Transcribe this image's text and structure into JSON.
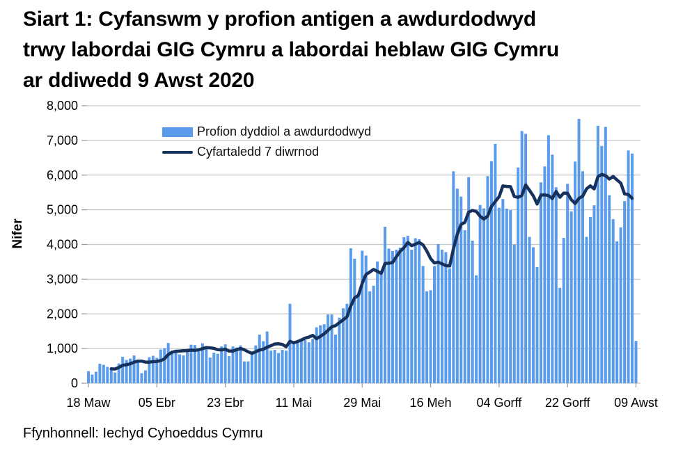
{
  "title_lines": [
    "Siart 1: Cyfanswm y profion antigen a awdurdodwyd",
    "trwy labordai GIG Cymru a labordai heblaw GIG Cymru",
    "ar ddiwedd 9 Awst 2020"
  ],
  "source_note": "Ffynhonnell: Iechyd Cyhoeddus Cymru",
  "legend": {
    "bar_label": "Profion dyddiol a awdurdodwyd",
    "line_label": "Cyfartaledd 7 diwrnod"
  },
  "colors": {
    "bar": "#5A9BEB",
    "line": "#16325C",
    "grid": "#C6C6C6",
    "tick": "#9E9E9E",
    "axis_text": "#000000"
  },
  "chart_data": {
    "type": "bar",
    "title": "Siart 1: Cyfanswm y profion antigen a awdurdodwyd trwy labordai GIG Cymru a labordai heblaw GIG Cymru ar ddiwedd 9 Awst 2020",
    "xlabel": "",
    "ylabel": "Nifer",
    "ylim": [
      0,
      8000
    ],
    "ytick_step": 1000,
    "grid": true,
    "legend_position": "top-left-inside",
    "x_start_date": "18 Mawrth 2020",
    "x_end_date": "9 Awst 2020",
    "x_ticks": [
      {
        "day": 1,
        "label": "18 Maw"
      },
      {
        "day": 19,
        "label": "05 Ebr"
      },
      {
        "day": 37,
        "label": "23 Ebr"
      },
      {
        "day": 55,
        "label": "11 Mai"
      },
      {
        "day": 73,
        "label": "29 Mai"
      },
      {
        "day": 91,
        "label": "16 Meh"
      },
      {
        "day": 109,
        "label": "04 Gorff"
      },
      {
        "day": 127,
        "label": "22 Gorff"
      },
      {
        "day": 145,
        "label": "09 Awst"
      }
    ],
    "series": [
      {
        "name": "Profion dyddiol a awdurdodwyd",
        "type": "bar",
        "values": [
          350,
          250,
          330,
          560,
          530,
          470,
          420,
          310,
          570,
          760,
          670,
          710,
          800,
          660,
          290,
          370,
          750,
          790,
          730,
          970,
          1010,
          1160,
          860,
          930,
          830,
          800,
          990,
          1110,
          1100,
          990,
          1150,
          1060,
          740,
          880,
          850,
          1060,
          1120,
          780,
          1060,
          1030,
          1090,
          630,
          630,
          820,
          1090,
          1400,
          1210,
          1490,
          940,
          960,
          870,
          960,
          940,
          2290,
          1210,
          1180,
          1280,
          1240,
          1180,
          1280,
          1610,
          1670,
          1700,
          1980,
          1980,
          1400,
          1890,
          2160,
          2290,
          3890,
          3590,
          2520,
          3820,
          3680,
          2650,
          2810,
          3510,
          3180,
          4510,
          3880,
          3810,
          3850,
          3910,
          4210,
          4250,
          3850,
          4180,
          4150,
          3380,
          2650,
          2680,
          3380,
          4010,
          3850,
          3780,
          3310,
          6110,
          5610,
          5380,
          4410,
          5940,
          4110,
          3110,
          5140,
          5040,
          5970,
          6400,
          6900,
          5060,
          5310,
          5030,
          4990,
          4000,
          6220,
          7270,
          7190,
          4220,
          3920,
          3350,
          5790,
          6250,
          7150,
          6590,
          5650,
          2750,
          4190,
          5750,
          4950,
          6390,
          7620,
          6110,
          4220,
          4790,
          5130,
          7420,
          6840,
          7390,
          5420,
          4730,
          4090,
          4490,
          5250,
          6710,
          6620,
          1220
        ]
      },
      {
        "name": "Cyfartaledd 7 diwrnod",
        "type": "line",
        "derived": "rolling_mean_7_of_daily_values",
        "drawn_days": [
          7,
          144
        ]
      }
    ]
  }
}
